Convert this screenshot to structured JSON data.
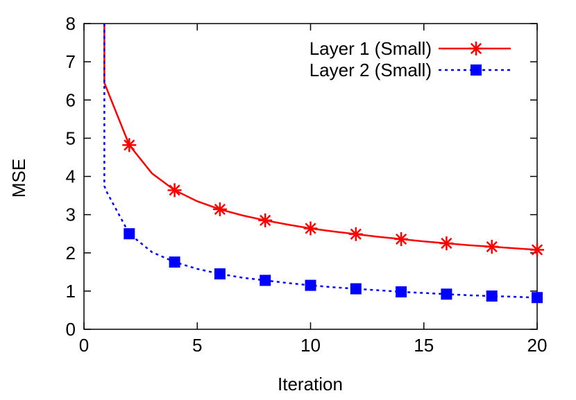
{
  "chart_data": {
    "type": "line",
    "xlabel": "Iteration",
    "ylabel": "MSE",
    "xlim": [
      0,
      20
    ],
    "ylim": [
      0,
      8
    ],
    "xticks": [
      0,
      5,
      10,
      15,
      20
    ],
    "yticks": [
      0,
      1,
      2,
      3,
      4,
      5,
      6,
      7,
      8
    ],
    "grid": false,
    "legend_position": "top-right",
    "series": [
      {
        "name": "Layer 1 (Small)",
        "color": "#ff0000",
        "line_style": "solid",
        "marker": "asterisk",
        "x": [
          0.9,
          0.9,
          1,
          2,
          3,
          4,
          5,
          6,
          7,
          8,
          9,
          10,
          11,
          12,
          13,
          14,
          15,
          16,
          17,
          18,
          19,
          20
        ],
        "y": [
          8.0,
          6.45,
          6.3,
          4.82,
          4.08,
          3.64,
          3.35,
          3.14,
          2.98,
          2.85,
          2.74,
          2.64,
          2.56,
          2.49,
          2.42,
          2.36,
          2.3,
          2.25,
          2.2,
          2.16,
          2.12,
          2.08
        ],
        "marker_x": [
          2,
          4,
          6,
          8,
          10,
          12,
          14,
          16,
          18,
          20
        ],
        "marker_y": [
          4.82,
          3.64,
          3.14,
          2.85,
          2.64,
          2.49,
          2.36,
          2.25,
          2.16,
          2.08
        ]
      },
      {
        "name": "Layer 2 (Small)",
        "color": "#0000ff",
        "line_style": "dashed",
        "marker": "square",
        "x": [
          0.9,
          0.9,
          1,
          2,
          3,
          4,
          5,
          6,
          7,
          8,
          9,
          10,
          11,
          12,
          13,
          14,
          15,
          16,
          17,
          18,
          19,
          20
        ],
        "y": [
          8.0,
          3.75,
          3.6,
          2.5,
          2.02,
          1.76,
          1.58,
          1.45,
          1.35,
          1.28,
          1.21,
          1.15,
          1.1,
          1.06,
          1.02,
          0.98,
          0.95,
          0.92,
          0.89,
          0.87,
          0.85,
          0.83
        ],
        "marker_x": [
          2,
          4,
          6,
          8,
          10,
          12,
          14,
          16,
          18,
          20
        ],
        "marker_y": [
          2.5,
          1.76,
          1.45,
          1.28,
          1.15,
          1.06,
          0.98,
          0.92,
          0.87,
          0.83
        ]
      }
    ]
  }
}
